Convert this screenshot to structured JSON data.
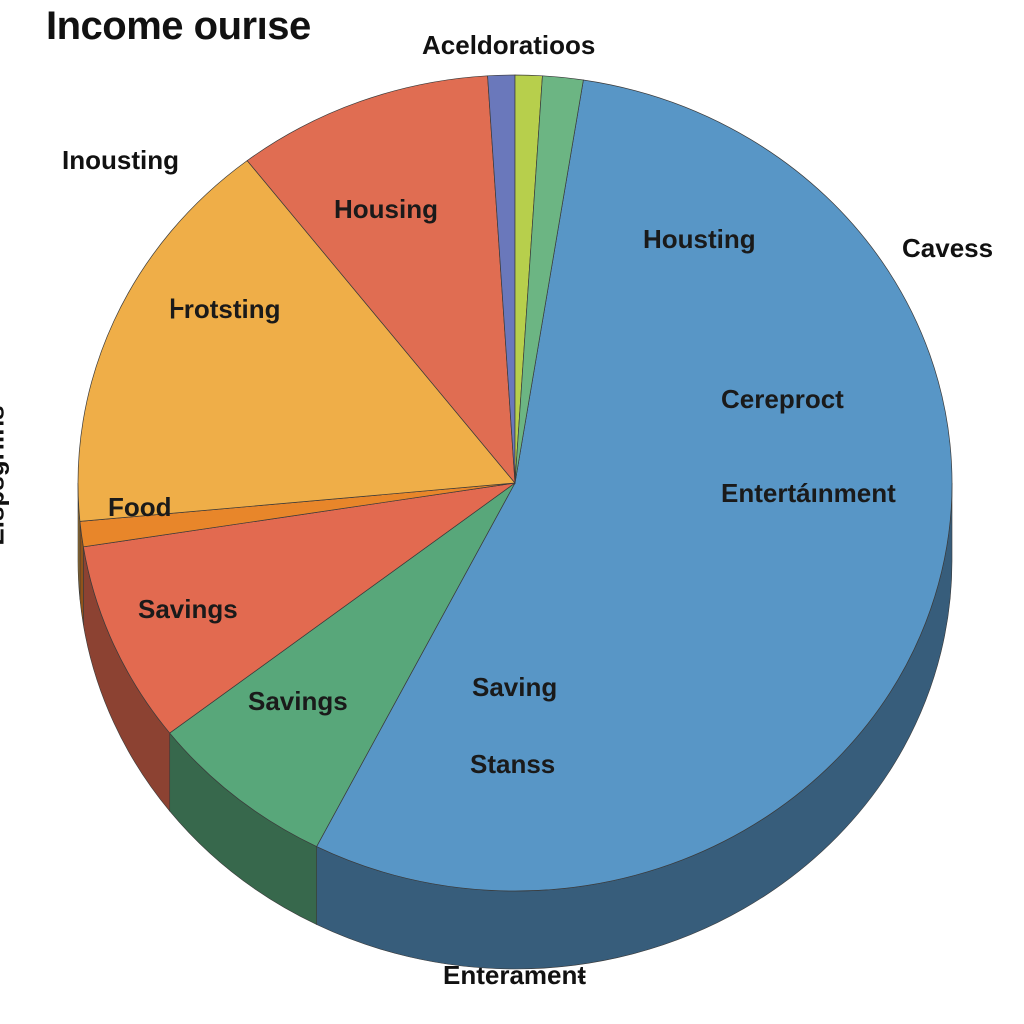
{
  "chart_data": {
    "type": "pie",
    "title": "Income ourıse",
    "ylabel": "Eispsgriins",
    "outer_labels": [
      "Aceldoratioos",
      "Inousting",
      "Cavess",
      "Enteramenŧ"
    ],
    "slices": [
      {
        "label": "",
        "value": 55.0,
        "color": "#5896c6"
      },
      {
        "label": "",
        "value": 7.0,
        "color": "#58a77a"
      },
      {
        "label": "",
        "value": 8.0,
        "color": "#e26a50"
      },
      {
        "label": "",
        "value": 1.0,
        "color": "#e8862a"
      },
      {
        "label": "",
        "value": 16.0,
        "color": "#efae48"
      },
      {
        "label": "",
        "value": 9.5,
        "color": "#e06d52"
      },
      {
        "label": "",
        "value": 1.0,
        "color": "#6a78bb"
      },
      {
        "label": "",
        "value": 1.0,
        "color": "#b7cf4c"
      },
      {
        "label": "",
        "value": 1.5,
        "color": "#6cb583"
      }
    ],
    "inner_labels": [
      "Housting",
      "Cereproct",
      "Entertáınment",
      "Saving",
      "Stanss",
      "Savings",
      "Savings",
      "Food",
      "Ꮀrotsting",
      "Housing"
    ]
  }
}
